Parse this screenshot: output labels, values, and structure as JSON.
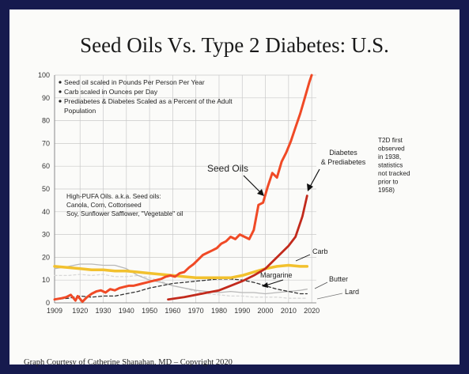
{
  "slide": {
    "title": "Seed Oils Vs. Type 2 Diabetes: U.S.",
    "credit": "Graph Courtesy of Catherine Shanahan, MD – Copyright 2020"
  },
  "colors": {
    "seed_oils": "#f04a26",
    "diabetes": "#c22a1c",
    "carb": "#f2c12e",
    "margarine": "#333333",
    "butter": "#b8b8b8",
    "lard": "#d8d8d8",
    "background_frame": "#161a4e"
  },
  "chart_data": {
    "type": "line",
    "title": "Seed Oils Vs. Type 2 Diabetes: U.S.",
    "xlabel": "",
    "ylabel": "",
    "xlim": [
      1909,
      2022
    ],
    "ylim": [
      0,
      100
    ],
    "x_ticks": [
      "1909",
      "1920",
      "1930",
      "1940",
      "1950",
      "1960",
      "1970",
      "1980",
      "1990",
      "2000",
      "2010",
      "2020"
    ],
    "y_ticks": [
      "0",
      "10",
      "20",
      "30",
      "40",
      "50",
      "60",
      "70",
      "80",
      "90",
      "100"
    ],
    "grid": true,
    "notes": [
      "Seed oil scaled in Pounds Per Person Per Year",
      "Carb scaled in Ounces per Day",
      "Prediabetes & Diabetes Scaled as a Percent of the Adult Population"
    ],
    "seed_oil_note": [
      "High-PUFA Oils. a.k.a. Seed oils:",
      "Canola, Corn, Cottonseed",
      "Soy, Sunflower Safflower, \"Vegetable\" oil"
    ],
    "t2d_note": [
      "T2D first",
      "observed",
      "in 1938,",
      "statistics",
      "not tracked",
      "prior to",
      "1958)"
    ],
    "series": [
      {
        "name": "Seed Oils",
        "label": "Seed Oils",
        "x": [
          1909,
          1912,
          1914,
          1916,
          1918,
          1919,
          1921,
          1923,
          1925,
          1927,
          1929,
          1931,
          1933,
          1935,
          1937,
          1939,
          1941,
          1943,
          1945,
          1947,
          1949,
          1951,
          1953,
          1955,
          1957,
          1959,
          1961,
          1963,
          1965,
          1967,
          1969,
          1971,
          1973,
          1975,
          1977,
          1979,
          1981,
          1983,
          1985,
          1987,
          1989,
          1991,
          1993,
          1995,
          1997,
          1999,
          2001,
          2003,
          2005,
          2007,
          2009,
          2011,
          2013,
          2015,
          2017,
          2019,
          2020
        ],
        "values": [
          1.5,
          2,
          2.5,
          3.5,
          1,
          3,
          0.5,
          2.5,
          4,
          5,
          5.5,
          4.5,
          6,
          5.5,
          6.5,
          7,
          7.5,
          7.5,
          8,
          8.5,
          9,
          9.5,
          10,
          10.5,
          11.5,
          12,
          11.5,
          13,
          13.5,
          15.5,
          17,
          19,
          21,
          22,
          23,
          24,
          26,
          27,
          29,
          28,
          30,
          29,
          28,
          32,
          43,
          44,
          51,
          57,
          55,
          62,
          66,
          71,
          77,
          83,
          90,
          97,
          100
        ]
      },
      {
        "name": "Diabetes & Prediabetes",
        "label": "Diabetes & Prediabetes",
        "x": [
          1958,
          1965,
          1970,
          1975,
          1980,
          1985,
          1990,
          1995,
          2000,
          2005,
          2010,
          2013,
          2016,
          2018
        ],
        "values": [
          1.5,
          2.5,
          3.5,
          4.5,
          5.5,
          7.5,
          9.5,
          12,
          15,
          20,
          25,
          29,
          38,
          47
        ]
      },
      {
        "name": "Carb",
        "label": "Carb",
        "x": [
          1909,
          1915,
          1920,
          1925,
          1930,
          1935,
          1940,
          1945,
          1950,
          1955,
          1960,
          1965,
          1970,
          1975,
          1980,
          1985,
          1990,
          1995,
          2000,
          2005,
          2010,
          2015,
          2018
        ],
        "values": [
          16,
          15.5,
          15,
          14.5,
          14.5,
          14,
          14,
          13.5,
          13,
          12.5,
          12,
          11.5,
          11,
          11,
          11,
          11,
          12,
          13.5,
          15,
          16,
          16.5,
          16,
          16
        ]
      },
      {
        "name": "Margarine",
        "label": "Margarine",
        "x": [
          1909,
          1915,
          1920,
          1925,
          1930,
          1935,
          1940,
          1945,
          1950,
          1955,
          1960,
          1965,
          1970,
          1975,
          1980,
          1985,
          1990,
          1995,
          2000,
          2005,
          2010,
          2015,
          2018
        ],
        "values": [
          1.5,
          2,
          3,
          2.5,
          3,
          3,
          4,
          5,
          6.5,
          7.5,
          8.5,
          9,
          9.5,
          10,
          10.5,
          10.5,
          10,
          9,
          7.5,
          6,
          5,
          4,
          4
        ]
      },
      {
        "name": "Butter",
        "label": "Butter",
        "x": [
          1909,
          1915,
          1920,
          1925,
          1930,
          1935,
          1940,
          1945,
          1950,
          1955,
          1960,
          1965,
          1970,
          1975,
          1980,
          1985,
          1990,
          1995,
          2000,
          2005,
          2010,
          2015,
          2018
        ],
        "values": [
          15,
          16,
          17,
          17,
          16.5,
          16.5,
          15,
          12,
          10,
          9,
          7.5,
          6.5,
          5.5,
          5,
          4.5,
          5,
          4.5,
          4.5,
          4,
          4.5,
          5,
          5.5,
          6
        ]
      },
      {
        "name": "Lard",
        "label": "Lard",
        "x": [
          1909,
          1915,
          1920,
          1925,
          1930,
          1935,
          1940,
          1945,
          1950,
          1955,
          1960,
          1965,
          1970,
          1975,
          1980,
          1985,
          1990,
          1995,
          2000,
          2005,
          2010,
          2015,
          2018
        ],
        "values": [
          12,
          12,
          12.5,
          12,
          12.5,
          11.5,
          11.5,
          12,
          11,
          9.5,
          7.5,
          6.5,
          5,
          4,
          3.5,
          3,
          3,
          2.5,
          2.5,
          2.5,
          2,
          2,
          2
        ]
      }
    ]
  }
}
